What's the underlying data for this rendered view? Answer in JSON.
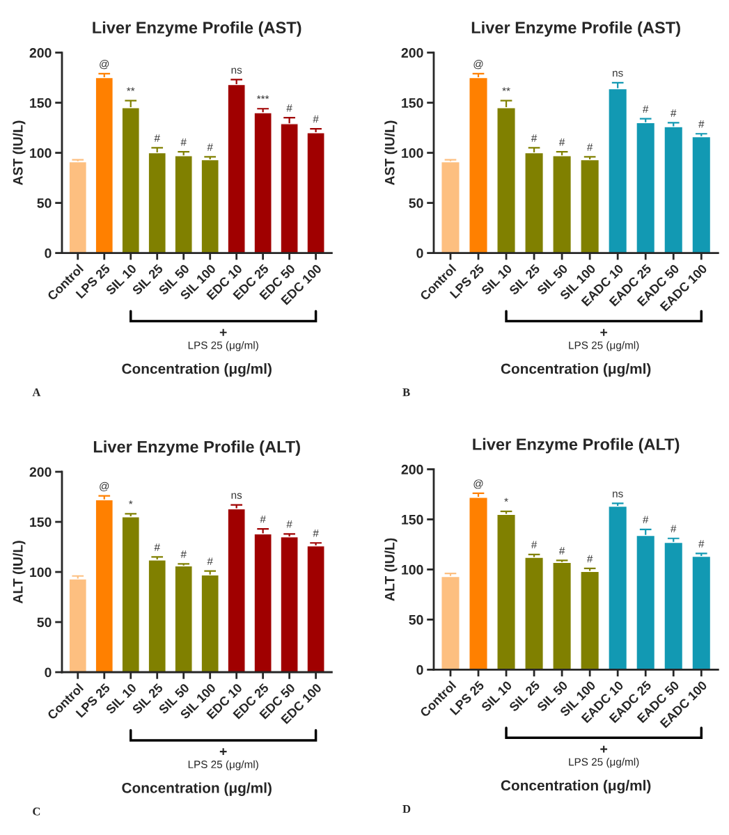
{
  "chart_data": [
    {
      "type": "bar",
      "title": "Liver Enzyme Profile (AST)",
      "xlabel": "Concentration (μg/ml)",
      "ylabel": "AST (IU/L)",
      "categories": [
        "Control",
        "LPS 25",
        "SIL 10",
        "SIL 25",
        "SIL 50",
        "SIL 100",
        "EDC 10",
        "EDC 25",
        "EDC 50",
        "EDC 100"
      ],
      "values": [
        91,
        175,
        145,
        100,
        97,
        93,
        168,
        140,
        129,
        120
      ],
      "errors": [
        2,
        4,
        7,
        5,
        4,
        3,
        5,
        4,
        6,
        4
      ],
      "colors": [
        "#fdbf80",
        "#ff8000",
        "#808000",
        "#808000",
        "#808000",
        "#808000",
        "#a00000",
        "#a00000",
        "#a00000",
        "#a00000"
      ],
      "ylim": [
        0,
        200
      ],
      "yticks": [
        0,
        50,
        100,
        150,
        200
      ],
      "annotations": [
        {
          "text": "@",
          "x": "LPS 25",
          "y": 175
        },
        {
          "text": "**",
          "x": "SIL 10",
          "y": 145
        },
        {
          "text": "#",
          "x": "SIL 25",
          "y": 100
        },
        {
          "text": "#",
          "x": "SIL 50",
          "y": 97
        },
        {
          "text": "#",
          "x": "SIL 100",
          "y": 93
        },
        {
          "text": "ns",
          "x": "EDC 10",
          "y": 168
        },
        {
          "text": "***",
          "x": "EDC 25",
          "y": 140
        },
        {
          "text": "#",
          "x": "EDC 50",
          "y": 129
        },
        {
          "text": "#",
          "x": "EDC 100",
          "y": 120
        },
        "+",
        "LPS 25 (μg/ml)",
        "A"
      ]
    },
    {
      "type": "bar",
      "title": "Liver Enzyme Profile (AST)",
      "xlabel": "Concentration (μg/ml)",
      "ylabel": "AST (IU/L)",
      "categories": [
        "Control",
        "LPS 25",
        "SIL 10",
        "SIL 25",
        "SIL 50",
        "SIL 100",
        "EADC 10",
        "EADC 25",
        "EADC 50",
        "EADC 100"
      ],
      "values": [
        91,
        175,
        145,
        100,
        97,
        93,
        164,
        130,
        126,
        116
      ],
      "errors": [
        2,
        4,
        7,
        5,
        4,
        3,
        6,
        4,
        4,
        3
      ],
      "colors": [
        "#fdbf80",
        "#ff8000",
        "#808000",
        "#808000",
        "#808000",
        "#808000",
        "#1299b3",
        "#1299b3",
        "#1299b3",
        "#1299b3"
      ],
      "ylim": [
        0,
        200
      ],
      "yticks": [
        0,
        50,
        100,
        150,
        200
      ],
      "annotations": [
        {
          "text": "@",
          "x": "LPS 25",
          "y": 175
        },
        {
          "text": "**",
          "x": "SIL 10",
          "y": 145
        },
        {
          "text": "#",
          "x": "SIL 25",
          "y": 100
        },
        {
          "text": "#",
          "x": "SIL 50",
          "y": 97
        },
        {
          "text": "#",
          "x": "SIL 100",
          "y": 93
        },
        {
          "text": "ns",
          "x": "EADC 10",
          "y": 164
        },
        {
          "text": "#",
          "x": "EADC 25",
          "y": 130
        },
        {
          "text": "#",
          "x": "EADC 50",
          "y": 126
        },
        {
          "text": "#",
          "x": "EADC 100",
          "y": 116
        },
        "+",
        "LPS 25 (μg/ml)",
        "B"
      ]
    },
    {
      "type": "bar",
      "title": "Liver Enzyme Profile (ALT)",
      "xlabel": "Concentration (μg/ml)",
      "ylabel": "ALT (IU/L)",
      "categories": [
        "Control",
        "LPS 25",
        "SIL 10",
        "SIL 25",
        "SIL 50",
        "SIL 100",
        "EDC 10",
        "EDC 25",
        "EDC 50",
        "EDC 100"
      ],
      "values": [
        93,
        172,
        155,
        112,
        106,
        97,
        163,
        138,
        135,
        126
      ],
      "errors": [
        3,
        4,
        3,
        3,
        2,
        4,
        4,
        5,
        3,
        3
      ],
      "colors": [
        "#fdbf80",
        "#ff8000",
        "#808000",
        "#808000",
        "#808000",
        "#808000",
        "#a00000",
        "#a00000",
        "#a00000",
        "#a00000"
      ],
      "ylim": [
        0,
        200
      ],
      "yticks": [
        0,
        50,
        100,
        150,
        200
      ],
      "annotations": [
        {
          "text": "@",
          "x": "LPS 25",
          "y": 172
        },
        {
          "text": "*",
          "x": "SIL 10",
          "y": 155
        },
        {
          "text": "#",
          "x": "SIL 25",
          "y": 112
        },
        {
          "text": "#",
          "x": "SIL 50",
          "y": 106
        },
        {
          "text": "#",
          "x": "SIL 100",
          "y": 97
        },
        {
          "text": "ns",
          "x": "EDC 10",
          "y": 163
        },
        {
          "text": "#",
          "x": "EDC 25",
          "y": 138
        },
        {
          "text": "#",
          "x": "EDC 50",
          "y": 135
        },
        {
          "text": "#",
          "x": "EDC 100",
          "y": 126
        },
        "+",
        "LPS 25 (μg/ml)",
        "C"
      ]
    },
    {
      "type": "bar",
      "title": "Liver Enzyme Profile (ALT)",
      "xlabel": "Concentration (μg/ml)",
      "ylabel": "ALT (IU/L)",
      "categories": [
        "Control",
        "LPS 25",
        "SIL 10",
        "SIL 25",
        "SIL 50",
        "SIL 100",
        "EADC 10",
        "EADC 25",
        "EADC 50",
        "EADC 100"
      ],
      "values": [
        93,
        172,
        155,
        112,
        107,
        98,
        163,
        134,
        127,
        113
      ],
      "errors": [
        3,
        4,
        3,
        3,
        2,
        3,
        3,
        6,
        4,
        3
      ],
      "colors": [
        "#fdbf80",
        "#ff8000",
        "#808000",
        "#808000",
        "#808000",
        "#808000",
        "#1299b3",
        "#1299b3",
        "#1299b3",
        "#1299b3"
      ],
      "ylim": [
        0,
        200
      ],
      "yticks": [
        0,
        50,
        100,
        150,
        200
      ],
      "annotations": [
        {
          "text": "@",
          "x": "LPS 25",
          "y": 172
        },
        {
          "text": "*",
          "x": "SIL 10",
          "y": 155
        },
        {
          "text": "#",
          "x": "SIL 25",
          "y": 112
        },
        {
          "text": "#",
          "x": "SIL 50",
          "y": 107
        },
        {
          "text": "#",
          "x": "SIL 100",
          "y": 98
        },
        {
          "text": "ns",
          "x": "EADC 10",
          "y": 163
        },
        {
          "text": "#",
          "x": "EADC 25",
          "y": 134
        },
        {
          "text": "#",
          "x": "EADC 50",
          "y": 127
        },
        {
          "text": "#",
          "x": "EADC 100",
          "y": 113
        },
        "+",
        "LPS 25 (μg/ml)",
        "D"
      ]
    }
  ]
}
